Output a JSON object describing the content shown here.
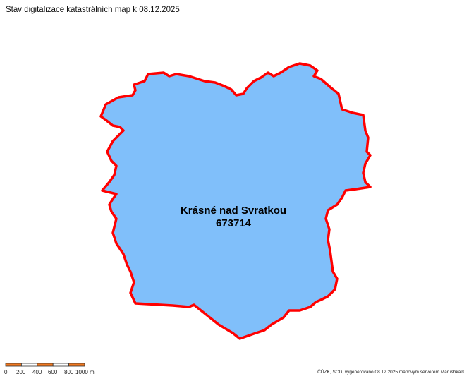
{
  "title": "Stav digitalizace katastrálních map k 08.12.2025",
  "area": {
    "name": "Krásné nad Svratkou",
    "code": "673714",
    "fill": "#80bffa",
    "border": "#ff0000"
  },
  "scale_bar": {
    "labels": [
      "0",
      "200",
      "400",
      "600",
      "800",
      "1000 m"
    ],
    "colors": [
      "#f07820",
      "#ffffff"
    ]
  },
  "credit": "ČÚZK, SCD, vygenerováno 08.12.2025 mapovým serverem Marushka®"
}
